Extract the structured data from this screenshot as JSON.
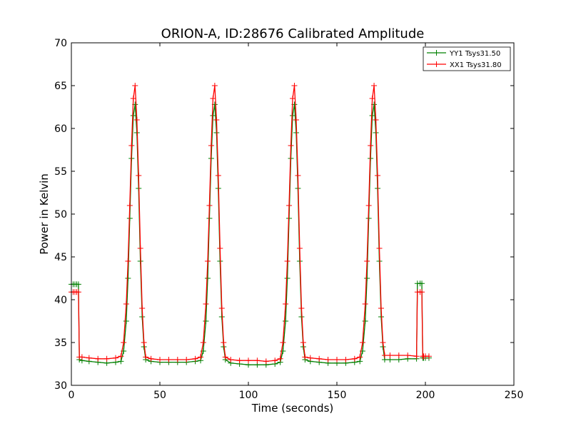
{
  "chart_data": {
    "type": "line",
    "title": "ORION-A, ID:28676 Calibrated Amplitude",
    "xlabel": "Time (seconds)",
    "ylabel": "Power in Kelvin",
    "xlim": [
      0,
      250
    ],
    "ylim": [
      30,
      70
    ],
    "xticks": [
      0,
      50,
      100,
      150,
      200,
      250
    ],
    "yticks": [
      30,
      35,
      40,
      45,
      50,
      55,
      60,
      65,
      70
    ],
    "xtick_labels": [
      "0",
      "50",
      "100",
      "150",
      "200",
      "250"
    ],
    "ytick_labels": [
      "30",
      "35",
      "40",
      "45",
      "50",
      "55",
      "60",
      "65",
      "70"
    ],
    "grid": false,
    "legend_position": "top-right",
    "marker": "+",
    "series": [
      {
        "name": "YY1 Tsys31.50",
        "color": "#008000",
        "x": [
          0,
          1,
          2,
          3,
          4,
          4.5,
          6,
          10,
          15,
          20,
          25,
          28,
          29.5,
          31,
          32,
          33,
          34,
          35,
          36,
          37,
          38,
          39,
          40,
          41,
          42,
          45,
          50,
          55,
          60,
          65,
          70,
          73,
          74.5,
          76,
          77,
          78,
          79,
          80,
          81,
          82,
          83,
          84,
          85,
          86,
          87,
          90,
          95,
          100,
          105,
          110,
          115,
          118,
          119.5,
          121,
          122,
          123,
          124,
          125,
          126,
          127,
          128,
          129,
          130,
          131,
          132,
          135,
          140,
          145,
          150,
          155,
          160,
          163,
          164.5,
          166,
          167,
          168,
          169,
          170,
          171,
          172,
          173,
          174,
          175,
          176,
          177,
          180,
          185,
          190,
          195,
          195.5,
          197,
          198,
          198.5,
          199,
          200,
          202
        ],
        "y": [
          41.8,
          41.8,
          41.8,
          41.8,
          41.8,
          33.0,
          32.9,
          32.8,
          32.7,
          32.6,
          32.7,
          32.8,
          34.0,
          37.5,
          42.5,
          49.5,
          56.5,
          61.5,
          62.8,
          59.5,
          53.0,
          44.5,
          38.0,
          34.5,
          33.0,
          32.8,
          32.7,
          32.7,
          32.7,
          32.7,
          32.8,
          32.9,
          34.0,
          37.5,
          42.5,
          49.5,
          56.5,
          61.5,
          62.8,
          59.5,
          53.0,
          44.5,
          38.0,
          34.5,
          33.0,
          32.6,
          32.5,
          32.4,
          32.4,
          32.4,
          32.5,
          32.7,
          34.0,
          37.5,
          42.5,
          49.5,
          56.5,
          61.5,
          62.8,
          59.5,
          53.0,
          44.5,
          38.0,
          34.5,
          33.0,
          32.8,
          32.7,
          32.6,
          32.6,
          32.6,
          32.7,
          32.8,
          34.0,
          37.5,
          42.5,
          49.5,
          56.5,
          61.5,
          62.8,
          59.5,
          53.0,
          44.5,
          38.0,
          34.5,
          33.0,
          33.0,
          33.0,
          33.1,
          33.1,
          41.9,
          41.9,
          41.9,
          33.2,
          33.2,
          33.2,
          33.2
        ]
      },
      {
        "name": "XX1 Tsys31.80",
        "color": "#ff0000",
        "x": [
          0,
          1,
          2,
          3,
          4,
          4.5,
          6,
          10,
          15,
          20,
          25,
          28,
          29.5,
          31,
          32,
          33,
          34,
          35,
          36,
          37,
          38,
          39,
          40,
          41,
          42,
          45,
          50,
          55,
          60,
          65,
          70,
          73,
          74.5,
          76,
          77,
          78,
          79,
          80,
          81,
          82,
          83,
          84,
          85,
          86,
          87,
          90,
          95,
          100,
          105,
          110,
          115,
          118,
          119.5,
          121,
          122,
          123,
          124,
          125,
          126,
          127,
          128,
          129,
          130,
          131,
          132,
          135,
          140,
          145,
          150,
          155,
          160,
          163,
          164.5,
          166,
          167,
          168,
          169,
          170,
          171,
          172,
          173,
          174,
          175,
          176,
          177,
          180,
          185,
          190,
          195,
          195.5,
          197,
          198,
          198.5,
          199,
          200,
          202
        ],
        "y": [
          40.9,
          40.9,
          40.9,
          40.9,
          40.9,
          33.3,
          33.3,
          33.2,
          33.1,
          33.1,
          33.2,
          33.4,
          35.0,
          39.5,
          44.5,
          51.0,
          58.0,
          63.5,
          65.0,
          61.0,
          54.5,
          46.0,
          39.0,
          35.0,
          33.3,
          33.1,
          33.0,
          33.0,
          33.0,
          33.0,
          33.1,
          33.3,
          35.0,
          39.5,
          44.5,
          51.0,
          58.0,
          63.5,
          65.0,
          61.0,
          54.5,
          46.0,
          39.0,
          35.0,
          33.3,
          33.0,
          32.9,
          32.9,
          32.9,
          32.8,
          32.9,
          33.1,
          35.0,
          39.5,
          44.5,
          51.0,
          58.0,
          63.5,
          65.0,
          61.0,
          54.5,
          46.0,
          39.0,
          35.0,
          33.3,
          33.2,
          33.1,
          33.0,
          33.0,
          33.0,
          33.1,
          33.3,
          35.0,
          39.5,
          44.5,
          51.0,
          58.0,
          63.5,
          65.0,
          61.0,
          54.5,
          46.0,
          39.0,
          35.0,
          33.5,
          33.5,
          33.5,
          33.5,
          33.4,
          40.9,
          40.9,
          40.9,
          33.4,
          33.4,
          33.4,
          33.4
        ]
      }
    ]
  }
}
